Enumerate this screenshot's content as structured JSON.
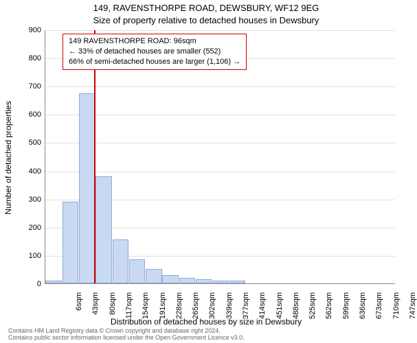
{
  "titles": {
    "address": "149, RAVENSTHORPE ROAD, DEWSBURY, WF12 9EG",
    "subtitle": "Size of property relative to detached houses in Dewsbury"
  },
  "chart": {
    "type": "histogram",
    "ylim": [
      0,
      900
    ],
    "ytick_step": 100,
    "yticks": [
      0,
      100,
      200,
      300,
      400,
      500,
      600,
      700,
      800,
      900
    ],
    "ylabel": "Number of detached properties",
    "xlabel": "Distribution of detached houses by size in Dewsbury",
    "xtick_labels": [
      "6sqm",
      "43sqm",
      "80sqm",
      "117sqm",
      "154sqm",
      "191sqm",
      "228sqm",
      "265sqm",
      "302sqm",
      "339sqm",
      "377sqm",
      "414sqm",
      "451sqm",
      "488sqm",
      "525sqm",
      "562sqm",
      "599sqm",
      "636sqm",
      "673sqm",
      "710sqm",
      "747sqm"
    ],
    "bar_values": [
      10,
      290,
      675,
      380,
      155,
      85,
      50,
      30,
      20,
      15,
      10,
      10,
      0,
      0,
      0,
      0,
      0,
      0,
      0,
      0,
      0
    ],
    "bar_color": "#c9d9f2",
    "bar_border_color": "#8faadc",
    "grid_color": "#e0e0e0",
    "axis_color": "#888888",
    "background_color": "#ffffff",
    "reference_line": {
      "value_sqm": 96,
      "color": "#cc0000"
    },
    "annotation": {
      "line1": "149 RAVENSTHORPE ROAD: 96sqm",
      "line2": "← 33% of detached houses are smaller (552)",
      "line3": "66% of semi-detached houses are larger (1,106) →",
      "border_color": "#cc0000"
    }
  },
  "footer": {
    "line1": "Contains HM Land Registry data © Crown copyright and database right 2024.",
    "line2": "Contains public sector information licensed under the Open Government Licence v3.0."
  }
}
